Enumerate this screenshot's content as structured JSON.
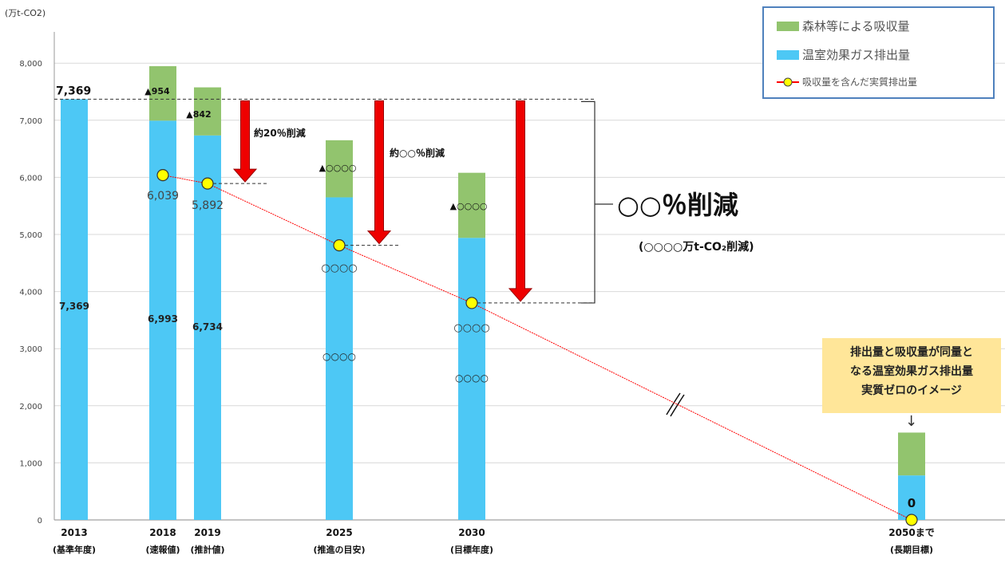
{
  "chart_data": {
    "type": "bar",
    "stacked": true,
    "unit_label": "(万t-CO2)",
    "yticks": [
      "0",
      "1,000",
      "2,000",
      "3,000",
      "4,000",
      "5,000",
      "6,000",
      "7,000",
      "8,000"
    ],
    "ylim": [
      0,
      8500
    ],
    "grid": true,
    "categories": [
      {
        "year": "2013",
        "sub": "(基準年度)"
      },
      {
        "year": "2018",
        "sub": "(速報値)"
      },
      {
        "year": "2019",
        "sub": "(推計値)"
      },
      {
        "year": "2025",
        "sub": "(推進の目安)"
      },
      {
        "year": "2030",
        "sub": "(目標年度)"
      },
      {
        "year": "2050まで",
        "sub": "(長期目標)"
      }
    ],
    "series": [
      {
        "name": "温室効果ガス排出量",
        "color": "#4dc8f5",
        "values": [
          7369,
          6993,
          6734,
          5650,
          4940,
          780
        ]
      },
      {
        "name": "森林等による吸収量",
        "color": "#92c46e",
        "values": [
          0,
          954,
          842,
          1000,
          1140,
          750
        ]
      }
    ],
    "net_series": {
      "name": "吸収量を含んだ実質排出量",
      "color": "#ff0000",
      "values": [
        null,
        6039,
        5892,
        4810,
        3800,
        0
      ]
    },
    "bar_value_labels": [
      "7,369",
      "6,993",
      "6,734",
      "○○○○",
      "○○○○",
      ""
    ],
    "absorption_labels": [
      "",
      "▲954",
      "▲842",
      "▲○○○○",
      "▲○○○○",
      ""
    ],
    "net_value_labels": [
      "",
      "6,039",
      "5,892",
      "○○○○",
      "○○○○",
      "0"
    ],
    "base_label": "7,369",
    "reduction_labels": [
      "約20％削減",
      "約○○％削減"
    ],
    "big_reduction": "○○％削減",
    "big_reduction_sub": "(○○○○万t-CO₂削減)",
    "note_lines": [
      "排出量と吸収量が同量と",
      "なる温室効果ガス排出量",
      "実質ゼロのイメージ"
    ],
    "note_arrow": "↓",
    "legend_position": "top-right"
  },
  "legend": [
    {
      "label": "森林等による吸収量",
      "color": "#92c46e"
    },
    {
      "label": "温室効果ガス排出量",
      "color": "#4dc8f5"
    },
    {
      "label": "吸収量を含んだ実質排出量",
      "color": "#ff0000"
    }
  ]
}
